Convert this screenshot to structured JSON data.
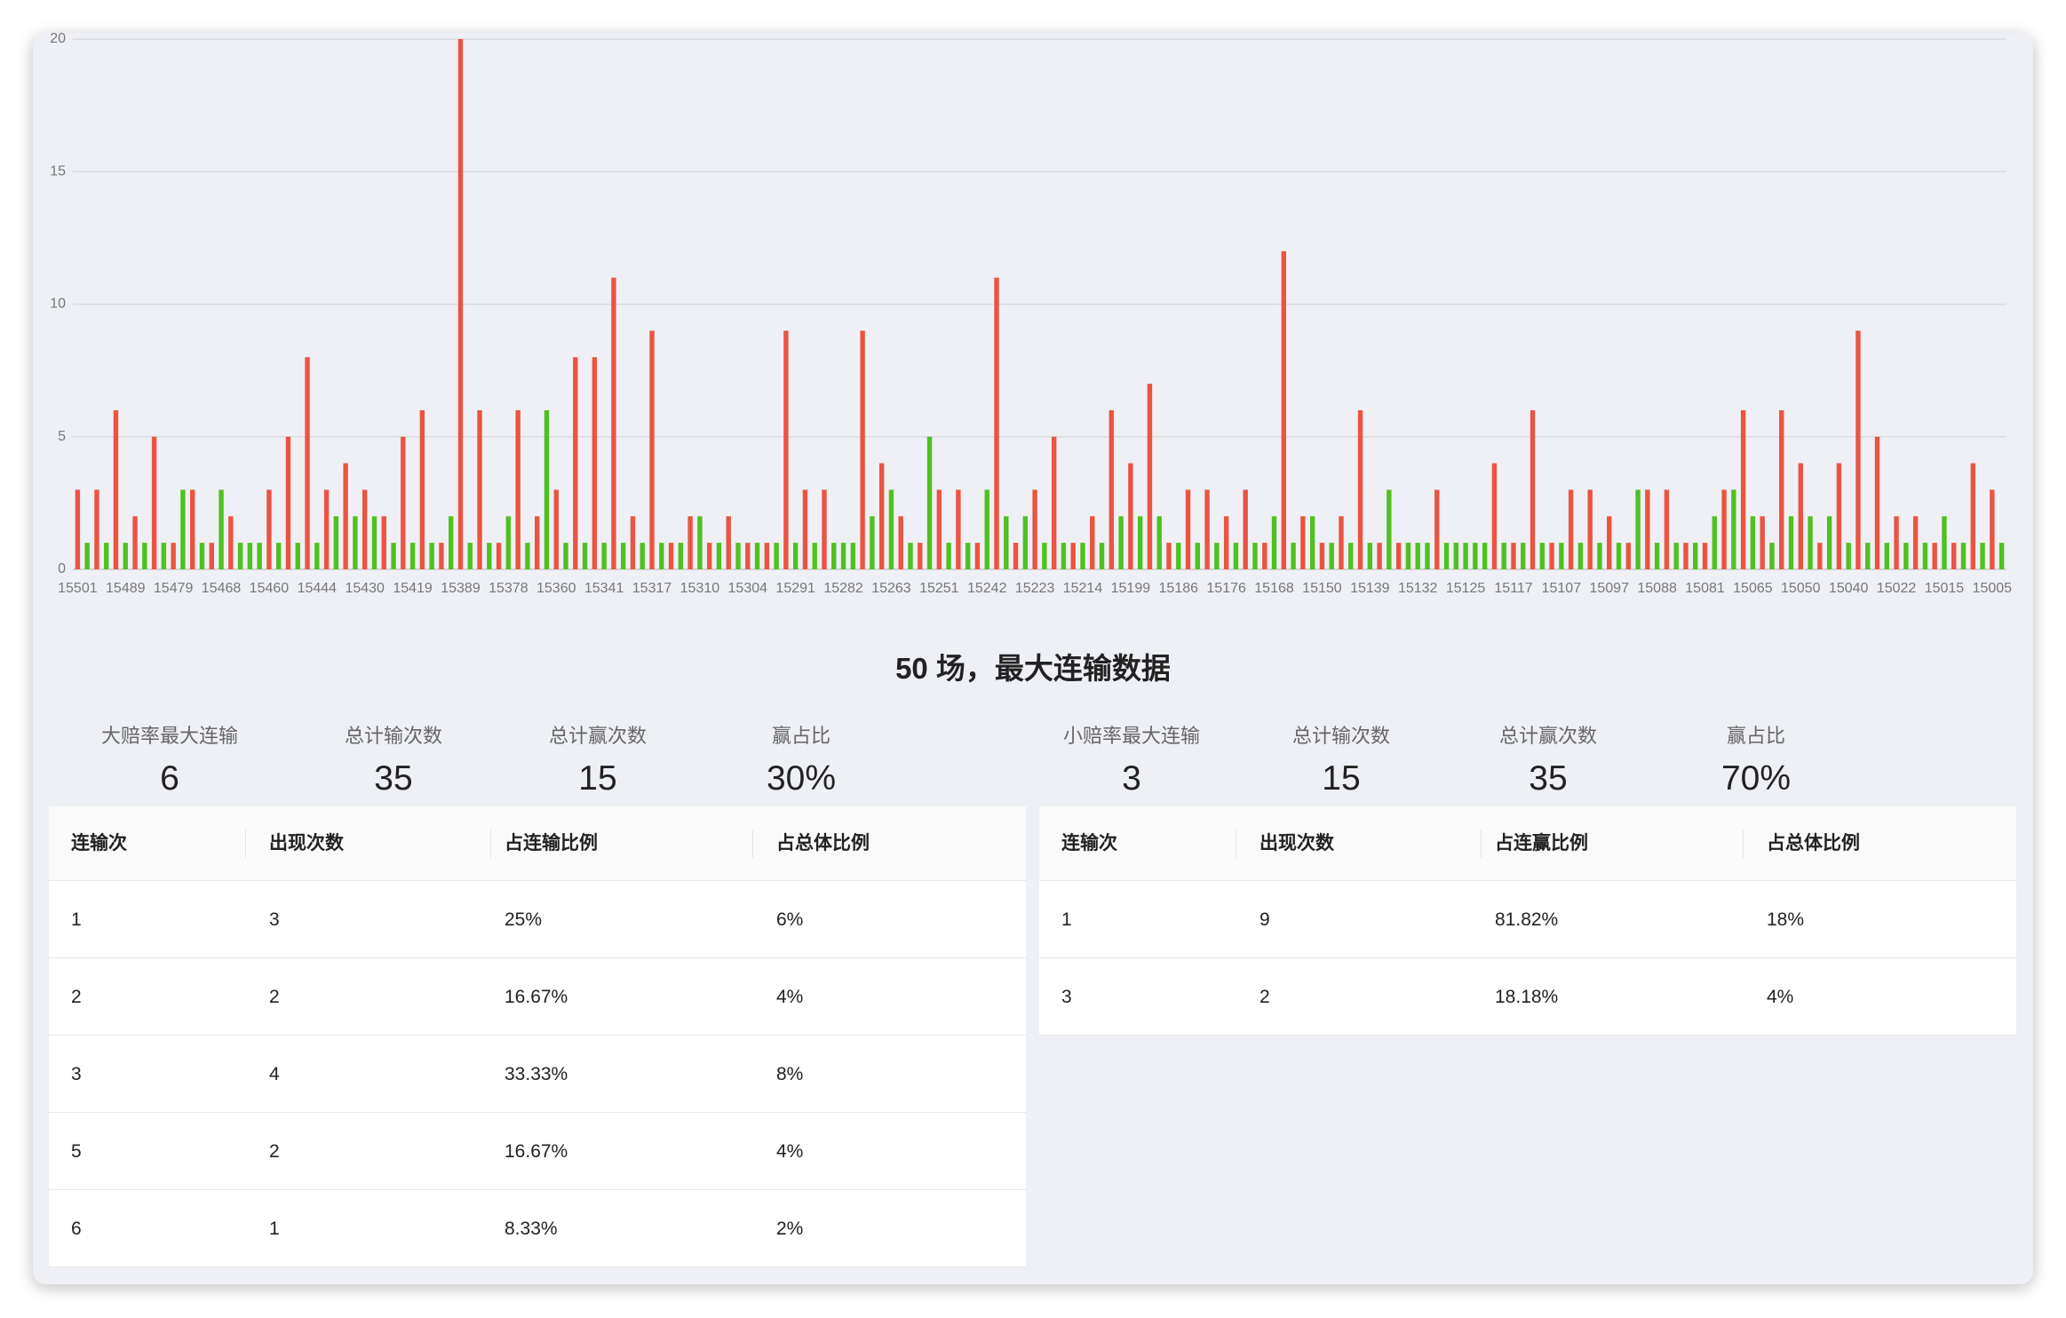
{
  "chart_data": {
    "type": "bar",
    "categories": [
      "15501",
      null,
      null,
      null,
      null,
      "15489",
      null,
      null,
      null,
      null,
      "15479",
      null,
      null,
      null,
      null,
      "15468",
      null,
      null,
      null,
      null,
      "15460",
      null,
      null,
      null,
      null,
      "15444",
      null,
      null,
      null,
      null,
      "15430",
      null,
      null,
      null,
      null,
      "15419",
      null,
      null,
      null,
      null,
      "15389",
      null,
      null,
      null,
      null,
      "15378",
      null,
      null,
      null,
      null,
      "15360",
      null,
      null,
      null,
      null,
      "15341",
      null,
      null,
      null,
      null,
      "15317",
      null,
      null,
      null,
      null,
      "15310",
      null,
      null,
      null,
      null,
      "15304",
      null,
      null,
      null,
      null,
      "15291",
      null,
      null,
      null,
      null,
      "15282",
      null,
      null,
      null,
      null,
      "15263",
      null,
      null,
      null,
      null,
      "15251",
      null,
      null,
      null,
      null,
      "15242",
      null,
      null,
      null,
      null,
      "15223",
      null,
      null,
      null,
      null,
      "15214",
      null,
      null,
      null,
      null,
      "15199",
      null,
      null,
      null,
      null,
      "15186",
      null,
      null,
      null,
      null,
      "15176",
      null,
      null,
      null,
      null,
      "15168",
      null,
      null,
      null,
      null,
      "15150",
      null,
      null,
      null,
      null,
      "15139",
      null,
      null,
      null,
      null,
      "15132",
      null,
      null,
      null,
      null,
      "15125",
      null,
      null,
      null,
      null,
      "15117",
      null,
      null,
      null,
      null,
      "15107",
      null,
      null,
      null,
      null,
      "15097",
      null,
      null,
      null,
      null,
      "15088",
      null,
      null,
      null,
      null,
      "15081",
      null,
      null,
      null,
      null,
      "15065",
      null,
      null,
      null,
      null,
      "15050",
      null,
      null,
      null,
      null,
      "15040",
      null,
      null,
      null,
      null,
      "15022",
      null,
      null,
      null,
      null,
      "15015",
      null,
      null,
      null,
      null,
      "15005",
      null
    ],
    "values": [
      3,
      1,
      3,
      1,
      6,
      1,
      2,
      1,
      5,
      1,
      1,
      3,
      3,
      1,
      1,
      3,
      2,
      1,
      1,
      1,
      3,
      1,
      5,
      1,
      8,
      1,
      3,
      2,
      4,
      2,
      3,
      2,
      2,
      1,
      5,
      1,
      6,
      1,
      1,
      2,
      20,
      1,
      6,
      1,
      1,
      2,
      6,
      1,
      2,
      6,
      3,
      1,
      8,
      1,
      8,
      1,
      11,
      1,
      2,
      1,
      9,
      1,
      1,
      1,
      2,
      2,
      1,
      1,
      2,
      1,
      1,
      1,
      1,
      1,
      9,
      1,
      3,
      1,
      3,
      1,
      1,
      1,
      9,
      2,
      4,
      3,
      2,
      1,
      1,
      5,
      3,
      1,
      3,
      1,
      1,
      3,
      11,
      2,
      1,
      2,
      3,
      1,
      5,
      1,
      1,
      1,
      2,
      1,
      6,
      2,
      4,
      2,
      7,
      2,
      1,
      1,
      3,
      1,
      3,
      1,
      2,
      1,
      3,
      1,
      1,
      2,
      12,
      1,
      2,
      2,
      1,
      1,
      2,
      1,
      6,
      1,
      1,
      3,
      1,
      1,
      1,
      1,
      3,
      1,
      1,
      1,
      1,
      1,
      4,
      1,
      1,
      1,
      6,
      1,
      1,
      1,
      3,
      1,
      3,
      1,
      2,
      1,
      1,
      3,
      3,
      1,
      3,
      1,
      1,
      1,
      1,
      2,
      3,
      3,
      6,
      2,
      2,
      1,
      6,
      2,
      4,
      2,
      1,
      2,
      4,
      1,
      9,
      1,
      5,
      1,
      2,
      1,
      2,
      1,
      1,
      2,
      1,
      1,
      4,
      1,
      3,
      1
    ],
    "colors": [
      "#eb5441",
      "#4fc11f",
      "#eb5441",
      "#4fc11f",
      "#eb5441",
      "#4fc11f",
      "#eb5441",
      "#4fc11f",
      "#eb5441",
      "#4fc11f",
      "#eb5441",
      "#4fc11f",
      "#eb5441",
      "#4fc11f",
      "#eb5441",
      "#4fc11f",
      "#eb5441",
      "#4fc11f",
      "#4fc11f",
      "#4fc11f",
      "#eb5441",
      "#4fc11f",
      "#eb5441",
      "#4fc11f",
      "#eb5441",
      "#4fc11f",
      "#eb5441",
      "#4fc11f",
      "#eb5441",
      "#4fc11f",
      "#eb5441",
      "#4fc11f",
      "#eb5441",
      "#4fc11f",
      "#eb5441",
      "#4fc11f",
      "#eb5441",
      "#4fc11f",
      "#eb5441",
      "#4fc11f",
      "#eb5441",
      "#4fc11f",
      "#eb5441",
      "#4fc11f",
      "#eb5441",
      "#4fc11f",
      "#eb5441",
      "#4fc11f",
      "#eb5441",
      "#4fc11f",
      "#eb5441",
      "#4fc11f",
      "#eb5441",
      "#4fc11f",
      "#eb5441",
      "#4fc11f",
      "#eb5441",
      "#4fc11f",
      "#eb5441",
      "#4fc11f",
      "#eb5441",
      "#4fc11f",
      "#eb5441",
      "#4fc11f",
      "#eb5441",
      "#4fc11f",
      "#eb5441",
      "#4fc11f",
      "#eb5441",
      "#4fc11f",
      "#eb5441",
      "#4fc11f",
      "#eb5441",
      "#4fc11f",
      "#eb5441",
      "#4fc11f",
      "#eb5441",
      "#4fc11f",
      "#eb5441",
      "#4fc11f",
      "#4fc11f",
      "#4fc11f",
      "#eb5441",
      "#4fc11f",
      "#eb5441",
      "#4fc11f",
      "#eb5441",
      "#4fc11f",
      "#eb5441",
      "#4fc11f",
      "#eb5441",
      "#4fc11f",
      "#eb5441",
      "#4fc11f",
      "#eb5441",
      "#4fc11f",
      "#eb5441",
      "#4fc11f",
      "#eb5441",
      "#4fc11f",
      "#eb5441",
      "#4fc11f",
      "#eb5441",
      "#4fc11f",
      "#eb5441",
      "#4fc11f",
      "#eb5441",
      "#4fc11f",
      "#eb5441",
      "#4fc11f",
      "#eb5441",
      "#4fc11f",
      "#eb5441",
      "#4fc11f",
      "#eb5441",
      "#4fc11f",
      "#eb5441",
      "#4fc11f",
      "#eb5441",
      "#4fc11f",
      "#eb5441",
      "#4fc11f",
      "#eb5441",
      "#4fc11f",
      "#eb5441",
      "#4fc11f",
      "#eb5441",
      "#4fc11f",
      "#eb5441",
      "#4fc11f",
      "#eb5441",
      "#4fc11f",
      "#eb5441",
      "#4fc11f",
      "#eb5441",
      "#4fc11f",
      "#eb5441",
      "#4fc11f",
      "#eb5441",
      "#4fc11f",
      "#4fc11f",
      "#4fc11f",
      "#eb5441",
      "#4fc11f",
      "#4fc11f",
      "#4fc11f",
      "#4fc11f",
      "#4fc11f",
      "#eb5441",
      "#4fc11f",
      "#eb5441",
      "#4fc11f",
      "#eb5441",
      "#4fc11f",
      "#eb5441",
      "#4fc11f",
      "#eb5441",
      "#4fc11f",
      "#eb5441",
      "#4fc11f",
      "#eb5441",
      "#4fc11f",
      "#eb5441",
      "#4fc11f",
      "#eb5441",
      "#4fc11f",
      "#eb5441",
      "#4fc11f",
      "#eb5441",
      "#4fc11f",
      "#eb5441",
      "#4fc11f",
      "#eb5441",
      "#4fc11f",
      "#eb5441",
      "#4fc11f",
      "#eb5441",
      "#4fc11f",
      "#eb5441",
      "#4fc11f",
      "#eb5441",
      "#4fc11f",
      "#eb5441",
      "#4fc11f",
      "#eb5441",
      "#4fc11f",
      "#eb5441",
      "#4fc11f",
      "#eb5441",
      "#4fc11f",
      "#eb5441",
      "#4fc11f",
      "#eb5441",
      "#4fc11f",
      "#eb5441",
      "#4fc11f",
      "#eb5441",
      "#4fc11f",
      "#eb5441",
      "#4fc11f",
      "#eb5441",
      "#4fc11f"
    ],
    "ylim": [
      0,
      20
    ],
    "yticks": [
      0,
      5,
      10,
      15,
      20
    ],
    "grid": true
  },
  "summary": {
    "title": "50 场，最大连输数据",
    "left_stats": [
      {
        "label": "大赔率最大连输",
        "value": "6"
      },
      {
        "label": "总计输次数",
        "value": "35"
      },
      {
        "label": "总计赢次数",
        "value": "15"
      },
      {
        "label": "赢占比",
        "value": "30%"
      }
    ],
    "right_stats": [
      {
        "label": "小赔率最大连输",
        "value": "3"
      },
      {
        "label": "总计输次数",
        "value": "15"
      },
      {
        "label": "总计赢次数",
        "value": "35"
      },
      {
        "label": "赢占比",
        "value": "70%"
      }
    ]
  },
  "left_table": {
    "columns": [
      "连输次",
      "出现次数",
      "占连输比例",
      "占总体比例"
    ],
    "rows": [
      [
        "1",
        "3",
        "25%",
        "6%"
      ],
      [
        "2",
        "2",
        "16.67%",
        "4%"
      ],
      [
        "3",
        "4",
        "33.33%",
        "8%"
      ],
      [
        "5",
        "2",
        "16.67%",
        "4%"
      ],
      [
        "6",
        "1",
        "8.33%",
        "2%"
      ]
    ]
  },
  "right_table": {
    "columns": [
      "连输次",
      "出现次数",
      "占连赢比例",
      "占总体比例"
    ],
    "rows": [
      [
        "1",
        "9",
        "81.82%",
        "18%"
      ],
      [
        "3",
        "2",
        "18.18%",
        "4%"
      ]
    ]
  }
}
